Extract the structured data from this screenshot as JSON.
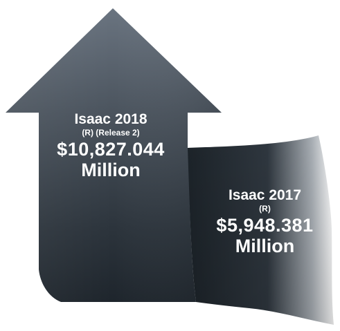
{
  "bars": [
    {
      "title": "Isaac 2018",
      "subtitle": "(R) (Release 2)",
      "amount": "$10,827.044",
      "unit": "Million"
    },
    {
      "title": "Isaac 2017",
      "subtitle": "(R)",
      "amount": "$5,948.381",
      "unit": "Million"
    }
  ],
  "colors": {
    "arrow_top": "#6a7480",
    "arrow_bottom": "#1e252c",
    "ribbon_dark": "#1c2329",
    "ribbon_light": "#ffffff",
    "text": "#ffffff"
  }
}
